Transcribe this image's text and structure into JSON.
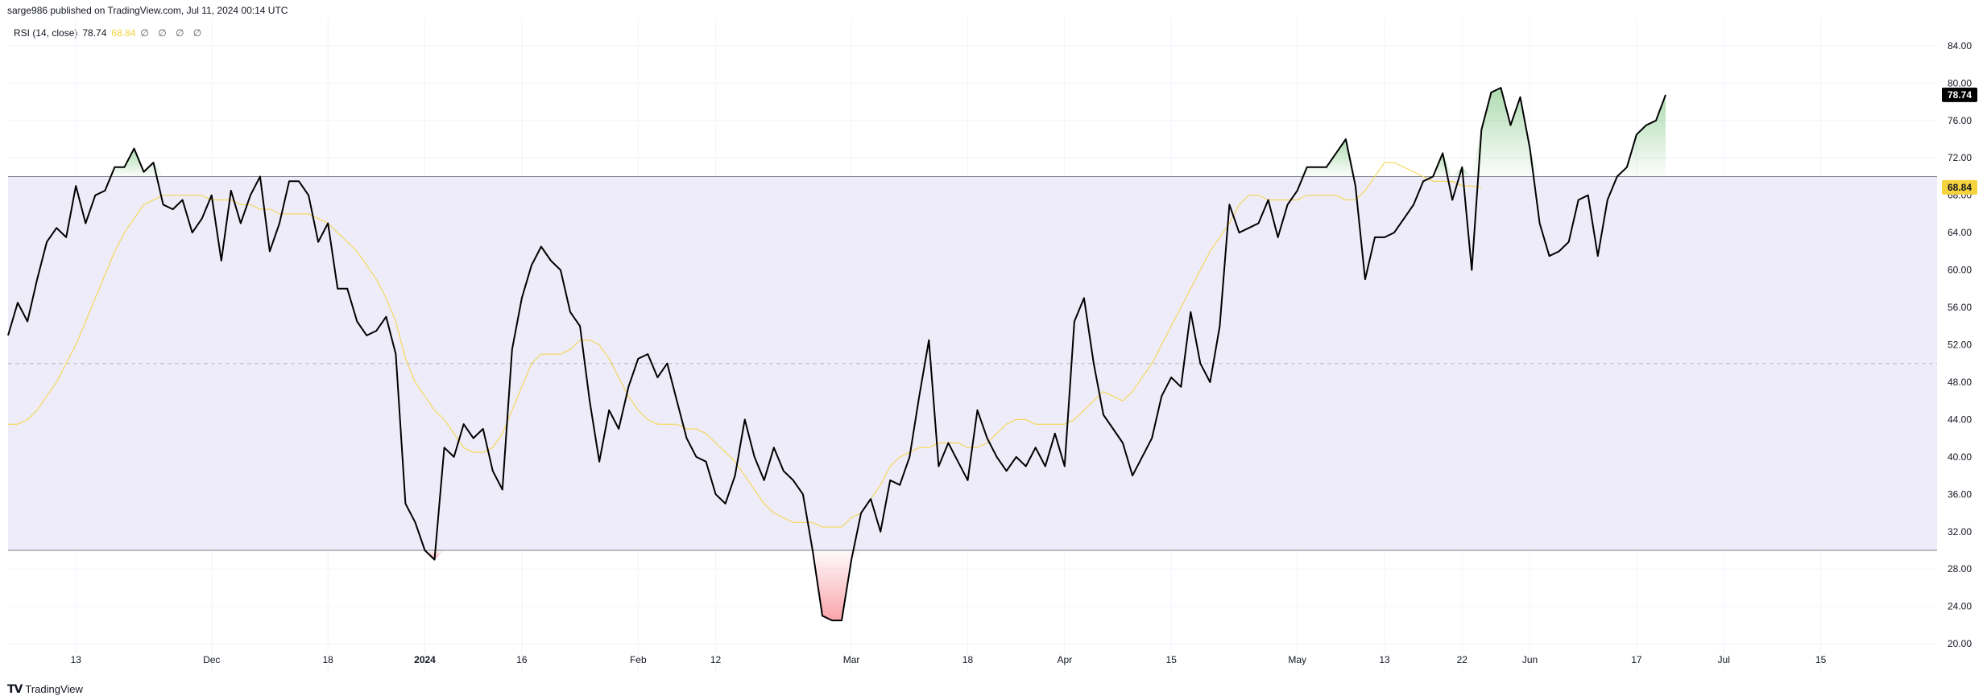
{
  "header": {
    "published": "sarge986 published on TradingView.com, Jul 11, 2024 00:14 UTC"
  },
  "legend": {
    "indicator": "RSI (14, close)",
    "rsi_value": "78.74",
    "ma_value": "68.84",
    "extra": "∅ ∅ ∅ ∅"
  },
  "footer": {
    "brand": "TradingView",
    "logo_icon": "tradingview-logo-icon"
  },
  "colors": {
    "rsi_line": "#000000",
    "ma_line": "#f5d33f",
    "band_fill": "#efecf9",
    "band_line": "#787b86",
    "overbought_fill": "#4caf50",
    "oversold_fill": "#f23645",
    "last_rsi_badge": "#000000",
    "last_ma_badge": "#f5d33f"
  },
  "chart_data": {
    "type": "line",
    "ylim": [
      17,
      87
    ],
    "yticks": [
      "84.00",
      "80.00",
      "76.00",
      "72.00",
      "68.00",
      "64.00",
      "60.00",
      "56.00",
      "52.00",
      "48.00",
      "44.00",
      "40.00",
      "36.00",
      "32.00",
      "28.00",
      "24.00",
      "20.00"
    ],
    "band": {
      "upper": 70,
      "lower": 30,
      "middle": 50
    },
    "x_labels": [
      {
        "label": "13",
        "i": 7
      },
      {
        "label": "Dec",
        "i": 21
      },
      {
        "label": "18",
        "i": 33
      },
      {
        "label": "2024",
        "i": 43
      },
      {
        "label": "16",
        "i": 53
      },
      {
        "label": "Feb",
        "i": 65
      },
      {
        "label": "12",
        "i": 73
      },
      {
        "label": "Mar",
        "i": 87
      },
      {
        "label": "18",
        "i": 99
      },
      {
        "label": "Apr",
        "i": 109
      },
      {
        "label": "15",
        "i": 120
      },
      {
        "label": "May",
        "i": 133
      },
      {
        "label": "13",
        "i": 142
      },
      {
        "label": "22",
        "i": 150
      },
      {
        "label": "Jun",
        "i": 157
      },
      {
        "label": "17",
        "i": 168
      },
      {
        "label": "Jul",
        "i": 177
      },
      {
        "label": "15",
        "i": 187
      }
    ],
    "x_total": 200,
    "series": [
      {
        "values": [
          53,
          56.5,
          54.5,
          59,
          63,
          64.5,
          63.5,
          69,
          65,
          68,
          68.5,
          71,
          71,
          73,
          70.5,
          71.5,
          67,
          66.5,
          67.5,
          64,
          65.5,
          68,
          61,
          68.5,
          65,
          68,
          70,
          62,
          65,
          69.5,
          69.5,
          68,
          63,
          65,
          58,
          58,
          54.5,
          53,
          53.5,
          55,
          51,
          35,
          33,
          30,
          29,
          41,
          40,
          43.5,
          42,
          43,
          38.5,
          36.5,
          51.5,
          57,
          60.5,
          62.5,
          61,
          60,
          55.5,
          54,
          46,
          39.5,
          45,
          43,
          47.5,
          50.5,
          51,
          48.5,
          50,
          46,
          42,
          40,
          39.5,
          36,
          35,
          38,
          44,
          40,
          37.5,
          41,
          38.5,
          37.5,
          36,
          30,
          23,
          22.5,
          22.5,
          29,
          34,
          35.5,
          32,
          37.5,
          37,
          40,
          46.5,
          52.5,
          39,
          41.5,
          39.5,
          37.5,
          45,
          42,
          40,
          38.5,
          40,
          39,
          41,
          39,
          42.5,
          39,
          54.5,
          57,
          50,
          44.5,
          43,
          41.5,
          38,
          40,
          42,
          46.5,
          48.5,
          47.5,
          55.5,
          50,
          48,
          54,
          67,
          64,
          64.5,
          65,
          67.5,
          63.5,
          67,
          68.5,
          71,
          71,
          71,
          72.5,
          74,
          69,
          59,
          63.5,
          63.5,
          64,
          65.5,
          67,
          69.5,
          70,
          72.5,
          67.5,
          71,
          60,
          75,
          79,
          79.5,
          75.5,
          78.5,
          73,
          65,
          61.5,
          62,
          63,
          67.5,
          68,
          61.5,
          67.5,
          70,
          71,
          74.5,
          75.5,
          76,
          78.74
        ]
      },
      {
        "values": [
          43.5,
          43.5,
          44,
          45,
          46.5,
          48,
          50,
          52,
          54.5,
          57,
          59.5,
          62,
          64,
          65.5,
          67,
          67.5,
          68,
          68,
          68,
          68,
          68,
          67.5,
          67.5,
          67.5,
          67,
          67,
          66.5,
          66.5,
          66,
          66,
          66,
          66,
          65.5,
          65,
          64,
          63,
          62,
          60.5,
          59,
          57,
          54.5,
          50.5,
          48,
          46.5,
          45,
          44,
          42.5,
          41,
          40.5,
          40.5,
          41,
          42.5,
          45,
          47.5,
          50,
          51,
          51,
          51,
          51.5,
          52.5,
          52.5,
          52,
          50.5,
          48.5,
          46.5,
          45,
          44,
          43.5,
          43.5,
          43.5,
          43,
          43,
          42.5,
          41.5,
          40.5,
          39.5,
          38,
          36.5,
          35,
          34,
          33.5,
          33,
          33,
          33,
          32.5,
          32.5,
          32.5,
          33.5,
          34,
          35.5,
          37,
          39,
          40,
          40.5,
          41,
          41,
          41.5,
          41.5,
          41.5,
          41,
          41,
          41.5,
          42.5,
          43.5,
          44,
          44,
          43.5,
          43.5,
          43.5,
          43.5,
          44,
          45,
          46,
          47,
          46.5,
          46,
          47,
          48.5,
          50,
          52,
          54,
          56,
          58,
          60,
          62,
          63.5,
          65,
          67,
          68,
          68,
          67.5,
          67.5,
          67.5,
          67.5,
          68,
          68,
          68,
          68,
          67.5,
          67.5,
          68.5,
          70,
          71.5,
          71.5,
          71,
          70.5,
          70,
          69.5,
          69.5,
          69.5,
          69,
          69,
          68.84
        ]
      }
    ]
  }
}
